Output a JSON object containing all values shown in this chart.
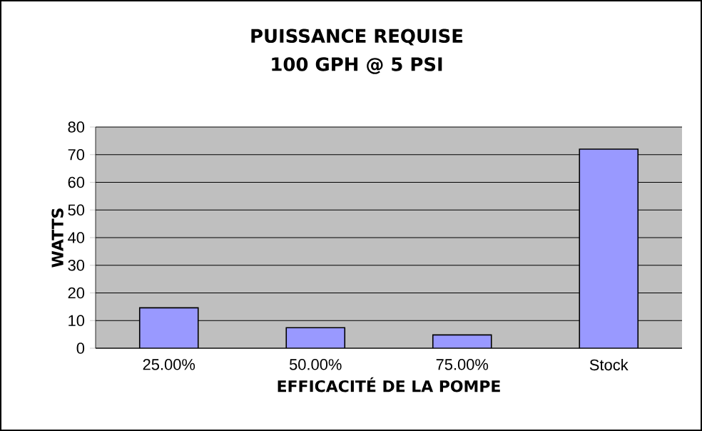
{
  "chart_data": {
    "type": "bar",
    "title": "PUISSANCE REQUISE",
    "subtitle": "100 GPH @ 5 PSI",
    "xlabel": "EFFICACITÉ DE LA POMPE",
    "ylabel": "WATTS",
    "categories": [
      "25.00%",
      "50.00%",
      "75.00%",
      "Stock"
    ],
    "values": [
      14.6,
      7.4,
      4.8,
      72
    ],
    "color": "#9999ff",
    "ylim": [
      0,
      80
    ],
    "yticks": [
      0,
      10,
      20,
      30,
      40,
      50,
      60,
      70,
      80
    ],
    "grid": "y"
  }
}
